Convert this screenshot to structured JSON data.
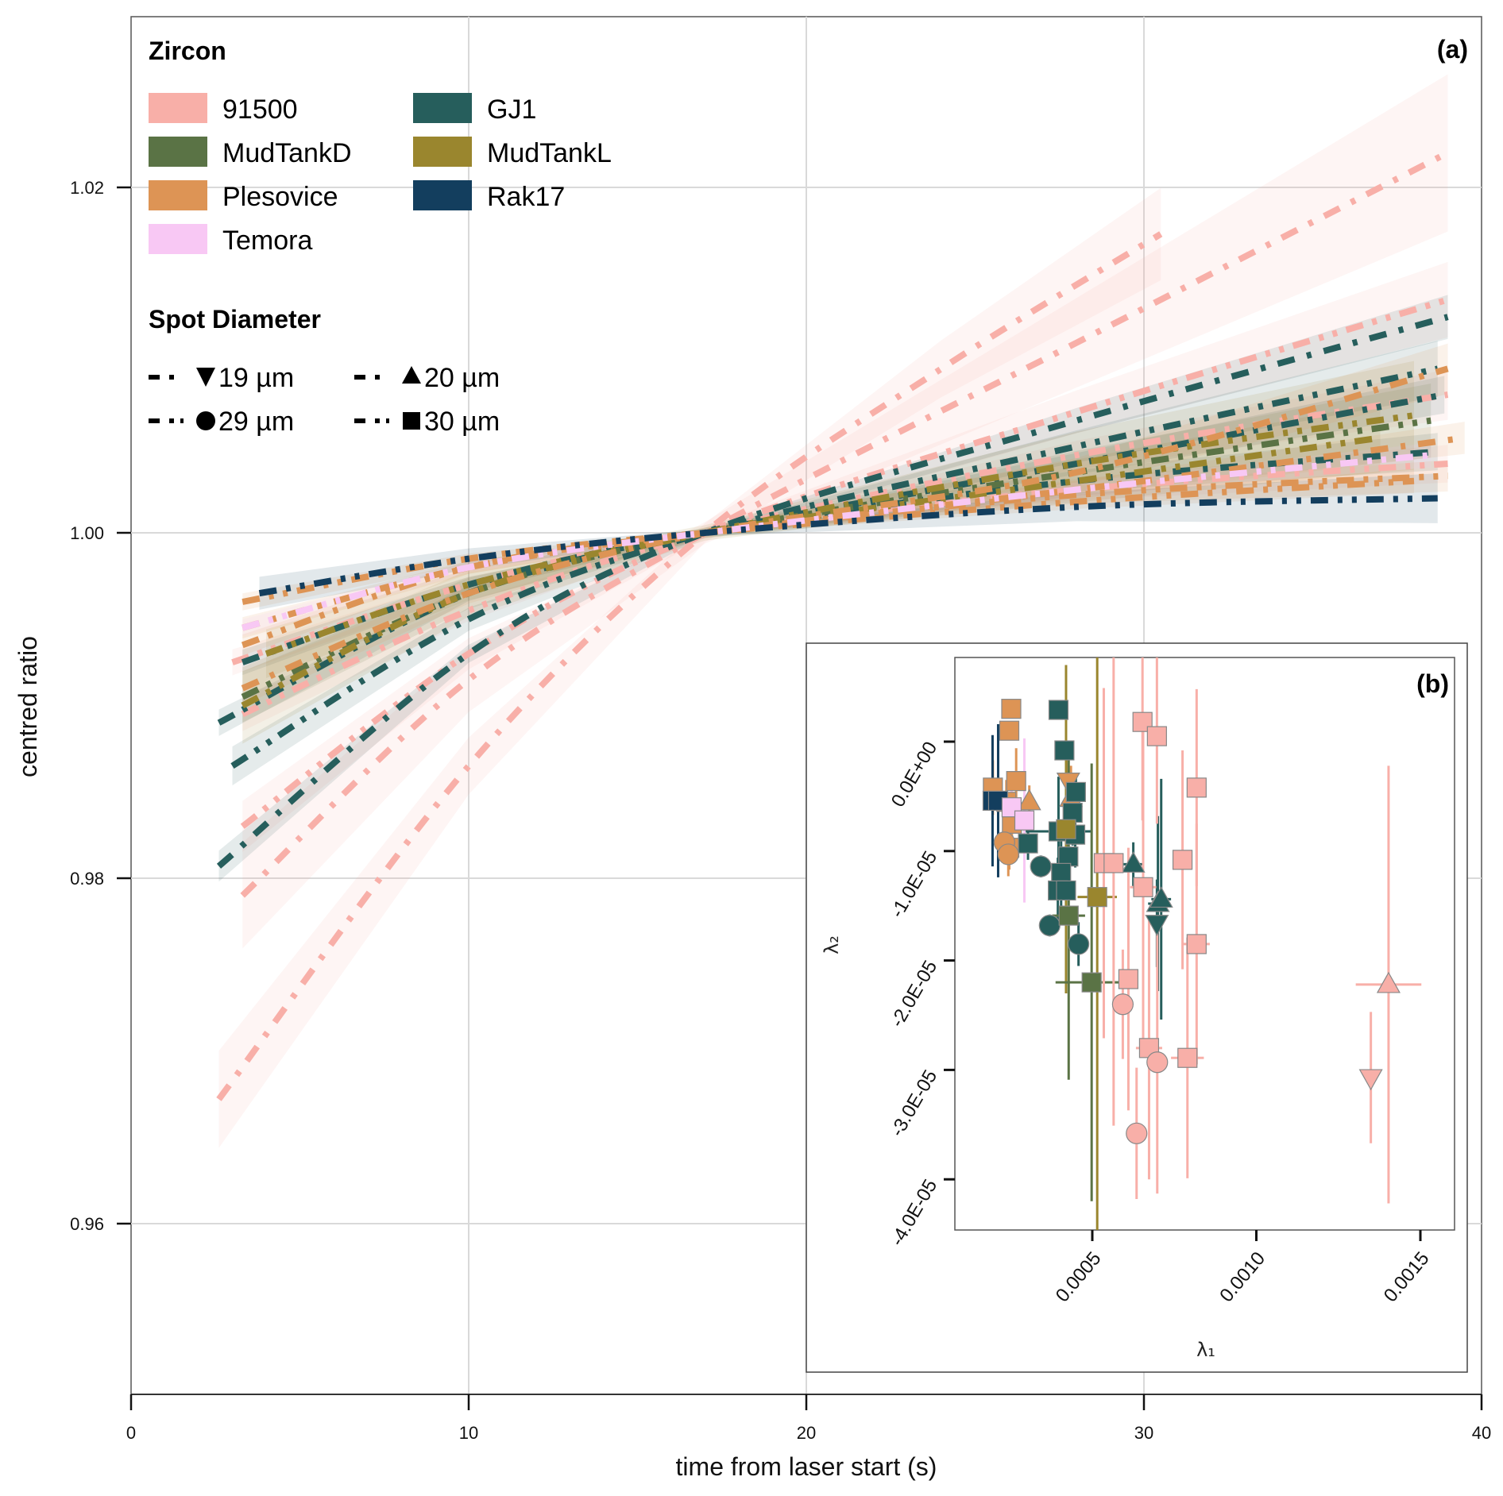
{
  "chart_data": [
    {
      "type": "line",
      "panel_label": "(a)",
      "title": "",
      "xlabel": "time from laser start (s)",
      "ylabel": "centred ratio",
      "xlim": [
        0,
        40
      ],
      "ylim": [
        0.95,
        1.03
      ],
      "xticks": [
        0,
        10,
        20,
        30,
        40
      ],
      "xtick_labels": [
        "0",
        "10",
        "20",
        "30",
        "40"
      ],
      "yticks": [
        0.96,
        0.98,
        1.0,
        1.02
      ],
      "ytick_labels": [
        "0.96",
        "0.98",
        "1.00",
        "1.02"
      ],
      "grid": true,
      "legend": {
        "placement": "top-left",
        "zircon_title": "Zircon",
        "zircon_entries": [
          {
            "label": "91500",
            "color": "#F8AFA8"
          },
          {
            "label": "MudTankD",
            "color": "#5A7345"
          },
          {
            "label": "Plesovice",
            "color": "#DD9455"
          },
          {
            "label": "Temora",
            "color": "#F8C8F4"
          },
          {
            "label": "GJ1",
            "color": "#265E5C"
          },
          {
            "label": "MudTankL",
            "color": "#9A862E"
          },
          {
            "label": "Rak17",
            "color": "#133E5E"
          }
        ],
        "spot_title": "Spot Diameter",
        "spot_entries": [
          {
            "label": "19 µm",
            "shape": "triangle-down",
            "dash": "long-dot"
          },
          {
            "label": "20 µm",
            "shape": "triangle-up",
            "dash": "long-dot"
          },
          {
            "label": "29 µm",
            "shape": "circle",
            "dash": "long-dot-dot"
          },
          {
            "label": "30 µm",
            "shape": "square",
            "dash": "long-dot-dot"
          }
        ]
      },
      "series": [
        {
          "name": "91500",
          "spot": "19 µm",
          "x": [
            2.6,
            10,
            17,
            24,
            30.5
          ],
          "y": [
            0.9672,
            0.9865,
            1.0,
            1.0095,
            1.0173
          ],
          "band": 0.0022
        },
        {
          "name": "91500",
          "spot": "20 µm",
          "x": [
            3.3,
            10,
            17,
            28,
            39
          ],
          "y": [
            0.979,
            0.9915,
            1.0,
            1.011,
            1.022
          ],
          "band": 0.0025
        },
        {
          "name": "91500",
          "spot": "29 µm",
          "x": [
            3.3,
            10,
            17,
            28,
            39
          ],
          "y": [
            0.983,
            0.993,
            1.0,
            1.007,
            1.0135
          ],
          "band": 0.0012
        },
        {
          "name": "91500",
          "spot": "30 µm",
          "x": [
            3.3,
            10,
            17,
            28,
            39
          ],
          "y": [
            0.9895,
            0.9955,
            1.0,
            1.0045,
            1.008
          ],
          "band": 0.0008
        },
        {
          "name": "91500",
          "spot": "30 µm",
          "x": [
            3.0,
            10,
            17,
            28,
            39
          ],
          "y": [
            0.9925,
            0.997,
            1.0,
            1.0025,
            1.004
          ],
          "band": 0.0006
        },
        {
          "name": "GJ1",
          "spot": "20 µm",
          "x": [
            2.6,
            10,
            17,
            28,
            39
          ],
          "y": [
            0.9807,
            0.993,
            1.0,
            1.0065,
            1.0125
          ],
          "band": 0.0007
        },
        {
          "name": "GJ1",
          "spot": "29 µm",
          "x": [
            3.0,
            10,
            17,
            28,
            38.7
          ],
          "y": [
            0.9865,
            0.995,
            1.0,
            1.005,
            1.0095
          ],
          "band": 0.0009
        },
        {
          "name": "GJ1",
          "spot": "30 µm",
          "x": [
            2.6,
            10,
            17,
            28,
            38.9
          ],
          "y": [
            0.989,
            0.9965,
            1.0,
            1.004,
            1.008
          ],
          "band": 0.0006
        },
        {
          "name": "GJ1",
          "spot": "19 µm",
          "x": [
            3.3,
            10,
            17,
            28,
            38.7
          ],
          "y": [
            0.9925,
            0.997,
            1.0,
            1.003,
            1.0047
          ],
          "band": 0.0006
        },
        {
          "name": "MudTankD",
          "spot": "30 µm",
          "x": [
            3.3,
            10,
            17,
            28,
            38.5
          ],
          "y": [
            0.9905,
            0.9965,
            1.0,
            1.0035,
            1.0065
          ],
          "band": 0.0012
        },
        {
          "name": "MudTankL",
          "spot": "30 µm",
          "x": [
            3.3,
            10,
            17,
            28,
            38
          ],
          "y": [
            0.99,
            0.9965,
            1.0,
            1.004,
            1.0068
          ],
          "band": 0.0018
        },
        {
          "name": "MudTankL",
          "spot": "29 µm",
          "x": [
            4.0,
            10,
            17,
            28,
            37
          ],
          "y": [
            0.993,
            0.997,
            1.0,
            1.003,
            1.0055
          ],
          "band": 0.0012
        },
        {
          "name": "Plesovice",
          "spot": "19 µm",
          "x": [
            3.3,
            10,
            17,
            28,
            39.5
          ],
          "y": [
            0.9945,
            0.998,
            1.0,
            1.0025,
            1.0055
          ],
          "band": 0.0005
        },
        {
          "name": "Plesovice",
          "spot": "20 µm",
          "x": [
            3.3,
            10,
            17,
            28,
            39
          ],
          "y": [
            0.991,
            0.9965,
            1.0,
            1.0035,
            1.0095
          ],
          "band": 0.0008
        },
        {
          "name": "Plesovice",
          "spot": "29 µm",
          "x": [
            3.3,
            10,
            17,
            28,
            39
          ],
          "y": [
            0.9935,
            0.998,
            1.0,
            1.0022,
            1.0033
          ],
          "band": 0.0005
        },
        {
          "name": "Plesovice",
          "spot": "30 µm",
          "x": [
            3.3,
            10,
            17,
            28,
            38
          ],
          "y": [
            0.996,
            0.9985,
            1.0,
            1.0018,
            1.003
          ],
          "band": 0.0004
        },
        {
          "name": "Temora",
          "spot": "30 µm",
          "x": [
            3.3,
            10,
            17,
            28,
            38.5
          ],
          "y": [
            0.9945,
            0.998,
            1.0,
            1.0025,
            1.0045
          ],
          "band": 0.0004
        },
        {
          "name": "Rak17",
          "spot": "30 µm",
          "x": [
            3.8,
            10,
            17,
            28,
            38.7
          ],
          "y": [
            0.9965,
            0.9985,
            1.0,
            1.0015,
            1.002
          ],
          "band": 0.0008
        }
      ]
    },
    {
      "type": "scatter",
      "panel_label": "(b)",
      "title": "",
      "xlabel": "λ₁",
      "ylabel": "λ₂",
      "xlim": [
        0.00016,
        0.00161
      ],
      "ylim": [
        -4.46e-05,
        7.4e-06
      ],
      "xticks": [
        0.0005,
        0.001,
        0.0015
      ],
      "xtick_labels": [
        "0.0005",
        "0.0010",
        "0.0015"
      ],
      "yticks": [
        0.0,
        -1e-05,
        -2e-05,
        -3e-05,
        -4e-05
      ],
      "ytick_labels": [
        "0.0E+00",
        "-1.0E-05",
        "-2.0E-05",
        "-3.0E-05",
        "-4.0E-05"
      ],
      "grid": false,
      "points": [
        {
          "name": "Plesovice",
          "shape": "square",
          "x": 0.000253,
          "y": 3e-06,
          "ex": 0,
          "ey": 0
        },
        {
          "name": "Plesovice",
          "shape": "square",
          "x": 0.000247,
          "y": 1e-06,
          "ex": 0,
          "ey": 0
        },
        {
          "name": "GJ1",
          "shape": "square",
          "x": 0.000397,
          "y": 2.9e-06,
          "ex": 0,
          "ey": 5e-07
        },
        {
          "name": "GJ1",
          "shape": "square",
          "x": 0.000415,
          "y": -8e-07,
          "ex": 0,
          "ey": 5e-07
        },
        {
          "name": "Plesovice",
          "shape": "square",
          "x": 0.000197,
          "y": -4.2e-06,
          "ex": 0,
          "ey": 2.5e-06
        },
        {
          "name": "Plesovice",
          "shape": "square",
          "x": 0.000268,
          "y": -3.6e-06,
          "ex": 0,
          "ey": 3e-06
        },
        {
          "name": "Plesovice",
          "shape": "square",
          "x": 0.000238,
          "y": -5.5e-06,
          "ex": 0,
          "ey": 2e-06
        },
        {
          "name": "Plesovice",
          "shape": "square",
          "x": 0.000255,
          "y": -7.5e-06,
          "ex": 0,
          "ey": 2e-06
        },
        {
          "name": "Plesovice",
          "shape": "square",
          "x": 0.000247,
          "y": -9.7e-06,
          "ex": 0,
          "ey": 2e-06
        },
        {
          "name": "Plesovice",
          "shape": "circle",
          "x": 0.000232,
          "y": -9.2e-06,
          "ex": 0,
          "ey": 2e-06
        },
        {
          "name": "Plesovice",
          "shape": "circle",
          "x": 0.000244,
          "y": -1.03e-05,
          "ex": 0,
          "ey": 2e-06
        },
        {
          "name": "Plesovice",
          "shape": "triangle-up",
          "x": 0.000308,
          "y": -5.5e-06,
          "ex": 0,
          "ey": 1.5e-06
        },
        {
          "name": "Plesovice",
          "shape": "triangle-down",
          "x": 0.000427,
          "y": -3.6e-06,
          "ex": 0,
          "ey": 3e-06
        },
        {
          "name": "Plesovice",
          "shape": "triangle-up",
          "x": 0.000435,
          "y": -5.2e-06,
          "ex": 0,
          "ey": 3e-06
        },
        {
          "name": "Rak17",
          "shape": "square",
          "x": 0.000196,
          "y": -5.4e-06,
          "ex": 0,
          "ey": 6e-06
        },
        {
          "name": "Rak17",
          "shape": "square",
          "x": 0.000213,
          "y": -5.4e-06,
          "ex": 0,
          "ey": 7e-06
        },
        {
          "name": "Temora",
          "shape": "square",
          "x": 0.000254,
          "y": -6e-06,
          "ex": 0,
          "ey": 2e-06
        },
        {
          "name": "Temora",
          "shape": "square",
          "x": 0.000293,
          "y": -7.2e-06,
          "ex": 0,
          "ey": 7.5e-06
        },
        {
          "name": "GJ1",
          "shape": "square",
          "x": 0.000304,
          "y": -9.3e-06,
          "ex": 0,
          "ey": 1.5e-06
        },
        {
          "name": "GJ1",
          "shape": "square",
          "x": 0.000397,
          "y": -8.2e-06,
          "ex": 0.0001,
          "ey": 5e-06
        },
        {
          "name": "GJ1",
          "shape": "square",
          "x": 0.00045,
          "y": -4.6e-06,
          "ex": 2e-05,
          "ey": 1.5e-06
        },
        {
          "name": "GJ1",
          "shape": "square",
          "x": 0.00044,
          "y": -6.5e-06,
          "ex": 0,
          "ey": 3e-06
        },
        {
          "name": "GJ1",
          "shape": "square",
          "x": 0.000448,
          "y": -8.5e-06,
          "ex": 0,
          "ey": 3e-06
        },
        {
          "name": "GJ1",
          "shape": "square",
          "x": 0.000427,
          "y": -1.05e-05,
          "ex": 0,
          "ey": 3e-06
        },
        {
          "name": "GJ1",
          "shape": "square",
          "x": 0.000405,
          "y": -1.2e-05,
          "ex": 0,
          "ey": 3e-06
        },
        {
          "name": "GJ1",
          "shape": "square",
          "x": 0.000395,
          "y": -1.36e-05,
          "ex": 0,
          "ey": 3e-06
        },
        {
          "name": "GJ1",
          "shape": "square",
          "x": 0.00042,
          "y": -1.36e-05,
          "ex": 0,
          "ey": 3e-06
        },
        {
          "name": "GJ1",
          "shape": "circle",
          "x": 0.000343,
          "y": -1.14e-05,
          "ex": 0,
          "ey": 1e-06
        },
        {
          "name": "GJ1",
          "shape": "circle",
          "x": 0.00037,
          "y": -1.68e-05,
          "ex": 0,
          "ey": 1e-06
        },
        {
          "name": "GJ1",
          "shape": "circle",
          "x": 0.000458,
          "y": -1.85e-05,
          "ex": 0,
          "ey": 2e-06
        },
        {
          "name": "GJ1",
          "shape": "triangle-up",
          "x": 0.000625,
          "y": -1.12e-05,
          "ex": 3e-05,
          "ey": 2e-06
        },
        {
          "name": "GJ1",
          "shape": "triangle-up",
          "x": 0.0007,
          "y": -1.48e-05,
          "ex": 3e-05,
          "ey": 8e-06
        },
        {
          "name": "GJ1",
          "shape": "triangle-up",
          "x": 0.00071,
          "y": -1.44e-05,
          "ex": 3e-05,
          "ey": 1.1e-05
        },
        {
          "name": "GJ1",
          "shape": "triangle-down",
          "x": 0.000697,
          "y": -1.66e-05,
          "ex": 0,
          "ey": 4e-06
        },
        {
          "name": "MudTankL",
          "shape": "square",
          "x": 0.00042,
          "y": -8e-06,
          "ex": 4e-05,
          "ey": 1.5e-05
        },
        {
          "name": "MudTankL",
          "shape": "square",
          "x": 0.000515,
          "y": -1.42e-05,
          "ex": 6e-05,
          "ey": 3.8e-05
        },
        {
          "name": "MudTankD",
          "shape": "square",
          "x": 0.000428,
          "y": -1.59e-05,
          "ex": 5e-05,
          "ey": 1.5e-05
        },
        {
          "name": "MudTankD",
          "shape": "square",
          "x": 0.000498,
          "y": -2.2e-05,
          "ex": 0.00011,
          "ey": 2e-05
        },
        {
          "name": "91500",
          "shape": "square",
          "x": 0.000653,
          "y": 1.8e-06,
          "ex": 0,
          "ey": 9e-06
        },
        {
          "name": "91500",
          "shape": "square",
          "x": 0.000697,
          "y": 5e-07,
          "ex": 0,
          "ey": 8e-06
        },
        {
          "name": "91500",
          "shape": "square",
          "x": 0.000818,
          "y": -4.2e-06,
          "ex": 3e-05,
          "ey": 9e-06
        },
        {
          "name": "91500",
          "shape": "square",
          "x": 0.000535,
          "y": -1.11e-05,
          "ex": 2e-05,
          "ey": 1.6e-05
        },
        {
          "name": "91500",
          "shape": "square",
          "x": 0.000565,
          "y": -1.11e-05,
          "ex": 2e-05,
          "ey": 2.4e-05
        },
        {
          "name": "91500",
          "shape": "square",
          "x": 0.000775,
          "y": -1.08e-05,
          "ex": 2e-05,
          "ey": 1e-05
        },
        {
          "name": "91500",
          "shape": "square",
          "x": 0.000655,
          "y": -1.33e-05,
          "ex": 4e-05,
          "ey": 1.5e-05
        },
        {
          "name": "91500",
          "shape": "square",
          "x": 0.000818,
          "y": -1.85e-05,
          "ex": 4e-05,
          "ey": 1.1e-05
        },
        {
          "name": "91500",
          "shape": "square",
          "x": 0.00061,
          "y": -2.17e-05,
          "ex": 2e-05,
          "ey": 1.2e-05
        },
        {
          "name": "91500",
          "shape": "square",
          "x": 0.000673,
          "y": -2.8e-05,
          "ex": 4e-05,
          "ey": 1.2e-05
        },
        {
          "name": "91500",
          "shape": "square",
          "x": 0.00079,
          "y": -2.89e-05,
          "ex": 5e-05,
          "ey": 1.1e-05
        },
        {
          "name": "91500",
          "shape": "circle",
          "x": 0.000593,
          "y": -2.4e-05,
          "ex": 0,
          "ey": 5e-06
        },
        {
          "name": "91500",
          "shape": "circle",
          "x": 0.000698,
          "y": -2.93e-05,
          "ex": 0,
          "ey": 1.2e-05
        },
        {
          "name": "91500",
          "shape": "circle",
          "x": 0.000635,
          "y": -3.58e-05,
          "ex": 2e-05,
          "ey": 6e-06
        },
        {
          "name": "91500",
          "shape": "triangle-up",
          "x": 0.001403,
          "y": -2.22e-05,
          "ex": 0.0001,
          "ey": 2e-05
        },
        {
          "name": "91500",
          "shape": "triangle-down",
          "x": 0.001349,
          "y": -3.07e-05,
          "ex": 2e-05,
          "ey": 6e-06
        }
      ]
    }
  ]
}
